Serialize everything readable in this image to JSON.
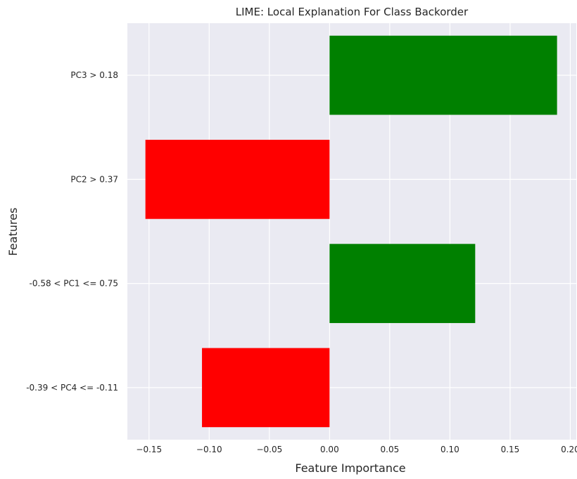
{
  "chart_data": {
    "type": "bar",
    "orientation": "horizontal",
    "title": "LIME: Local Explanation For Class Backorder",
    "xlabel": "Feature Importance",
    "ylabel": "Features",
    "categories": [
      "PC3 > 0.18",
      "PC2 > 0.37",
      "-0.58 < PC1 <= 0.75",
      "-0.39 < PC4 <= -0.11"
    ],
    "values": [
      0.189,
      -0.153,
      0.121,
      -0.106
    ],
    "bar_colors": [
      "#008000",
      "#ff0000",
      "#008000",
      "#ff0000"
    ],
    "xlim": [
      -0.168,
      0.205
    ],
    "xticks": [
      -0.15,
      -0.1,
      -0.05,
      0.0,
      0.05,
      0.1,
      0.15,
      0.2
    ],
    "xtick_labels": [
      "−0.15",
      "−0.10",
      "−0.05",
      "0.00",
      "0.05",
      "0.10",
      "0.15",
      "0.20"
    ],
    "grid": true,
    "background": "#eaeaf2"
  }
}
